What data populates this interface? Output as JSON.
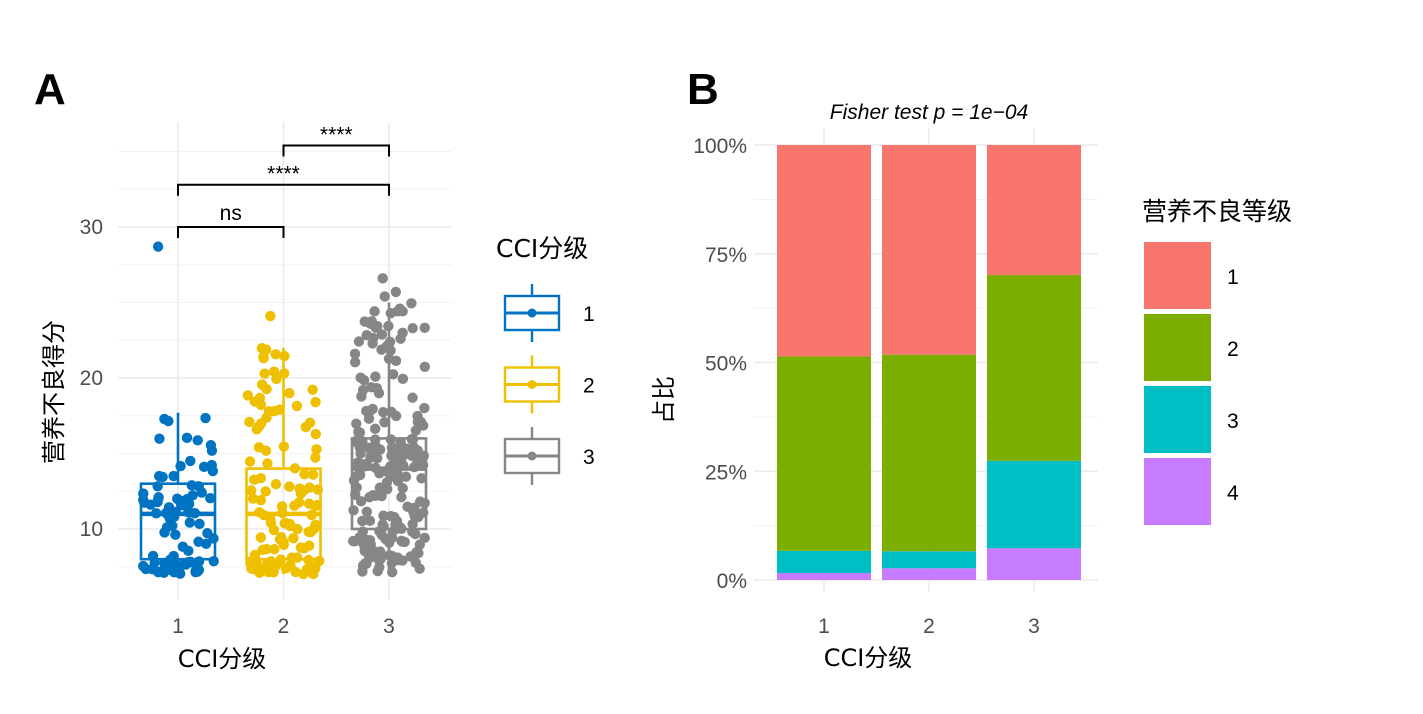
{
  "colors": {
    "cci": {
      "1": "#0073C2",
      "2": "#EFC000",
      "3": "#868686"
    },
    "grade": {
      "1": "#F8766D",
      "2": "#7CAE00",
      "3": "#00BFC4",
      "4": "#C77CFF"
    }
  },
  "chart_data": [
    {
      "panel_label": "A",
      "type": "box",
      "title": "",
      "xlabel": "CCI分级",
      "ylabel": "营养不良得分",
      "categories": [
        "1",
        "2",
        "3"
      ],
      "yticks": [
        10,
        20,
        30
      ],
      "ylim": [
        5.5,
        37
      ],
      "grid": true,
      "legend": {
        "title": "CCI分级",
        "position": "right",
        "items": [
          "1",
          "2",
          "3"
        ]
      },
      "boxes": [
        {
          "group": "1",
          "min": 7,
          "q1": 8,
          "median": 11,
          "q3": 13,
          "max": 17.7
        },
        {
          "group": "2",
          "min": 7,
          "q1": 8,
          "median": 11,
          "q3": 14,
          "max": 22
        },
        {
          "group": "3",
          "min": 7,
          "q1": 10,
          "median": 14,
          "q3": 16,
          "max": 25
        }
      ],
      "outliers": [
        {
          "group": "1",
          "y": 28.7
        },
        {
          "group": "2",
          "y": 24.1
        },
        {
          "group": "3",
          "y": 26.6
        },
        {
          "group": "3",
          "y": 25.7
        },
        {
          "group": "3",
          "y": 25.4
        }
      ],
      "comparisons": [
        {
          "group1": "1",
          "group2": "2",
          "y": 30,
          "label": "ns"
        },
        {
          "group1": "1",
          "group2": "3",
          "y": 32.8,
          "label": "****"
        },
        {
          "group1": "2",
          "group2": "3",
          "y": 35.4,
          "label": "****"
        }
      ]
    },
    {
      "panel_label": "B",
      "type": "bar",
      "stacked": true,
      "title": "Fisher test p = 1e−04",
      "xlabel": "CCI分级",
      "ylabel": "占比",
      "categories": [
        "1",
        "2",
        "3"
      ],
      "yticks": [
        "0%",
        "25%",
        "50%",
        "75%",
        "100%"
      ],
      "ylim": [
        0,
        1
      ],
      "grid": true,
      "legend": {
        "title": "营养不良等级",
        "position": "right",
        "items": [
          "1",
          "2",
          "3",
          "4"
        ]
      },
      "series": [
        {
          "name": "1",
          "values": [
            0.486,
            0.482,
            0.299
          ]
        },
        {
          "name": "2",
          "values": [
            0.447,
            0.452,
            0.427
          ]
        },
        {
          "name": "3",
          "values": [
            0.051,
            0.039,
            0.201
          ]
        },
        {
          "name": "4",
          "values": [
            0.016,
            0.027,
            0.073
          ]
        }
      ]
    }
  ]
}
